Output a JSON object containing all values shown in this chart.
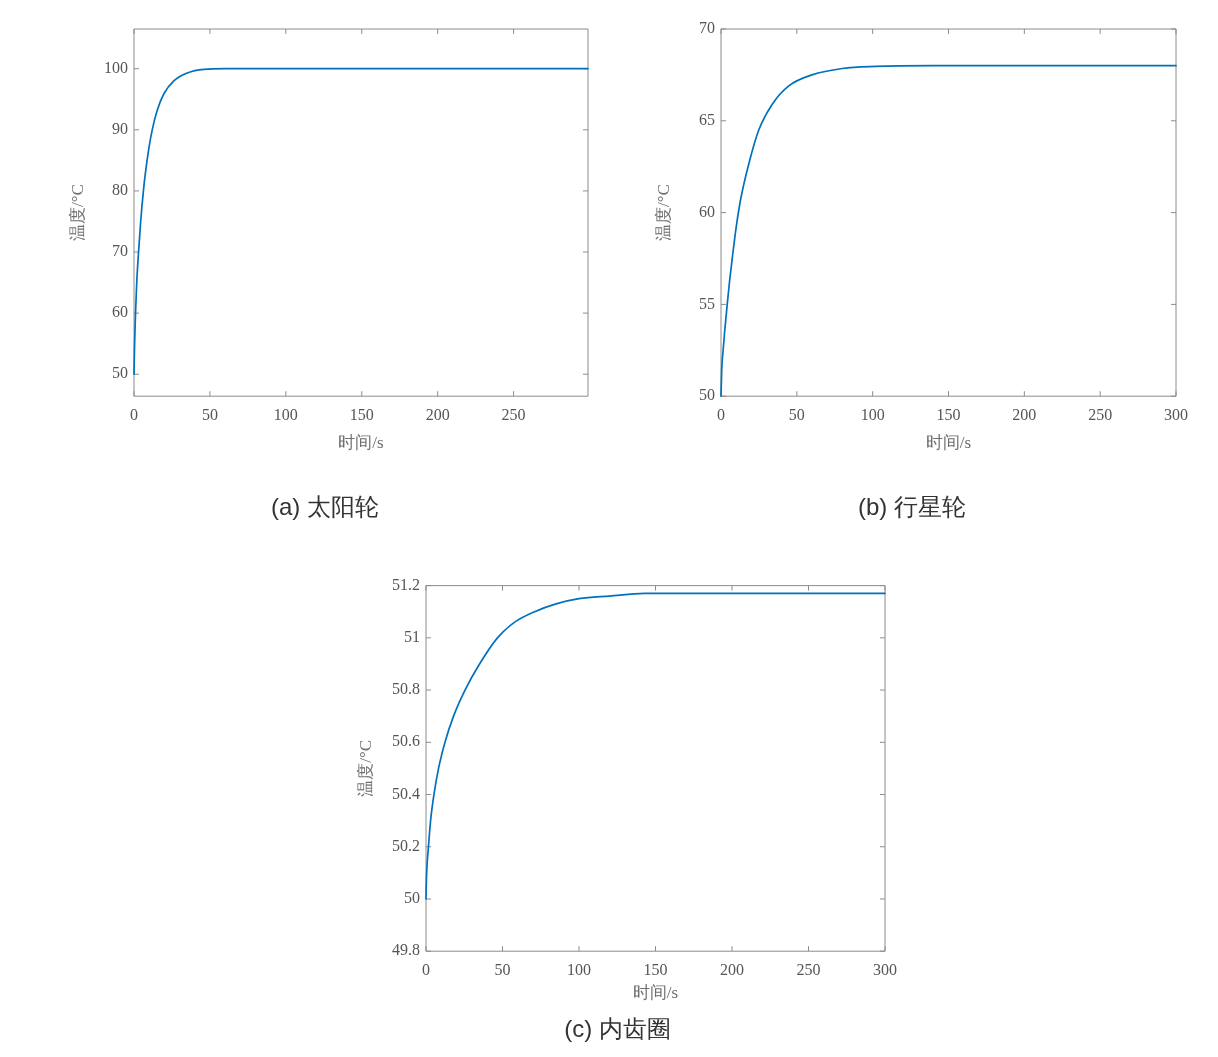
{
  "chart_data": [
    {
      "type": "line",
      "title": "(a) 太阳轮",
      "xlabel": "时间/s",
      "ylabel": "温度/°C",
      "color": "#0072bd",
      "x": [
        0,
        0.4,
        1,
        1.8,
        3,
        4.4,
        6.2,
        7.3,
        9.8,
        12,
        15.3,
        19.7,
        26.2,
        35,
        46,
        60,
        80,
        299
      ],
      "values": [
        50,
        55,
        60,
        65,
        70,
        75,
        80,
        82.5,
        87,
        90,
        93.2,
        95.9,
        98,
        99.3,
        99.9,
        100,
        100,
        100
      ],
      "xlim": [
        0,
        299
      ],
      "ylim": [
        46.4,
        106.5
      ],
      "xticks": [
        0,
        50,
        100,
        150,
        200,
        250
      ],
      "yticks": [
        50,
        60,
        70,
        80,
        90,
        100
      ]
    },
    {
      "type": "line",
      "title": "(b) 行星轮",
      "xlabel": "时间/s",
      "ylabel": "温度/°C",
      "color": "#0072bd",
      "x": [
        0,
        0.5,
        1.4,
        2.5,
        4.1,
        5.7,
        7.4,
        10,
        12.9,
        18.3,
        24.9,
        33.8,
        44.7,
        60,
        80,
        102,
        140,
        300
      ],
      "values": [
        50,
        51.5,
        52.5,
        53.6,
        55,
        56.3,
        57.5,
        59.2,
        60.7,
        62.65,
        64.5,
        65.9,
        66.9,
        67.5,
        67.85,
        67.96,
        68,
        68
      ],
      "xlim": [
        0,
        300
      ],
      "ylim": [
        50,
        70
      ],
      "xticks": [
        0,
        50,
        100,
        150,
        200,
        250,
        300
      ],
      "yticks": [
        50,
        55,
        60,
        65,
        70
      ]
    },
    {
      "type": "line",
      "title": "(c) 内齿圈",
      "xlabel": "时间/s",
      "ylabel": "温度/°C",
      "color": "#0072bd",
      "x": [
        0,
        0.3,
        0.8,
        1.6,
        3,
        5.2,
        8.2,
        12.4,
        18,
        25.5,
        35,
        46.7,
        58,
        71,
        85,
        100,
        120,
        143,
        180,
        300
      ],
      "values": [
        50,
        50.08,
        50.14,
        50.2,
        50.3,
        50.4,
        50.5,
        50.6,
        50.7,
        50.8,
        50.9,
        51,
        51.06,
        51.1,
        51.13,
        51.15,
        51.16,
        51.17,
        51.17,
        51.17
      ],
      "xlim": [
        0,
        300
      ],
      "ylim": [
        49.8,
        51.2
      ],
      "xticks": [
        0,
        50,
        100,
        150,
        200,
        250,
        300
      ],
      "yticks": [
        49.8,
        50,
        50.2,
        50.4,
        50.6,
        50.8,
        51,
        51.2
      ]
    }
  ]
}
